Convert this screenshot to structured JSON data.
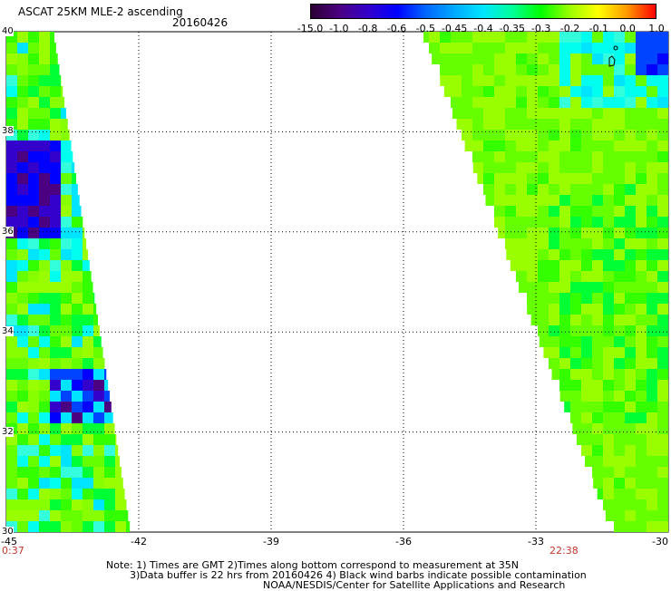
{
  "header": {
    "title": "ASCAT 25KM MLE-2 ascending",
    "date": "20160426"
  },
  "colorbar": {
    "labels": [
      "-15.0",
      "-1.0",
      "-0.8",
      "-0.6",
      "-0.5",
      "-0.45",
      "-0.4",
      "-0.35",
      "-0.3",
      "-0.2",
      "-0.1",
      "0.0",
      "1.0"
    ],
    "colors": [
      "#2b0033",
      "#4b0082",
      "#3300cc",
      "#0000ff",
      "#0066ff",
      "#00aaff",
      "#00e5ff",
      "#00ff99",
      "#00ff00",
      "#99ff00",
      "#ffff00",
      "#ff9900",
      "#ff0000"
    ]
  },
  "axes": {
    "lat_labels": [
      "40",
      "38",
      "36",
      "34",
      "32",
      "30"
    ],
    "lon_labels": [
      "-45",
      "-42",
      "-39",
      "-36",
      "-33",
      "-30"
    ],
    "lat_range": [
      30,
      40
    ],
    "lon_range": [
      -45,
      -30
    ],
    "grid": true
  },
  "swaths": {
    "left_time": "0:37",
    "right_time": "22:38"
  },
  "notes": [
    "Note: 1) Times are GMT 2)Times along bottom correspond to measurement at 35N",
    "3)Data buffer is 22 hrs from 20160426 4) Black wind barbs indicate possible contamination",
    "NOAA/NESDIS/Center for Satellite Applications and Research"
  ]
}
